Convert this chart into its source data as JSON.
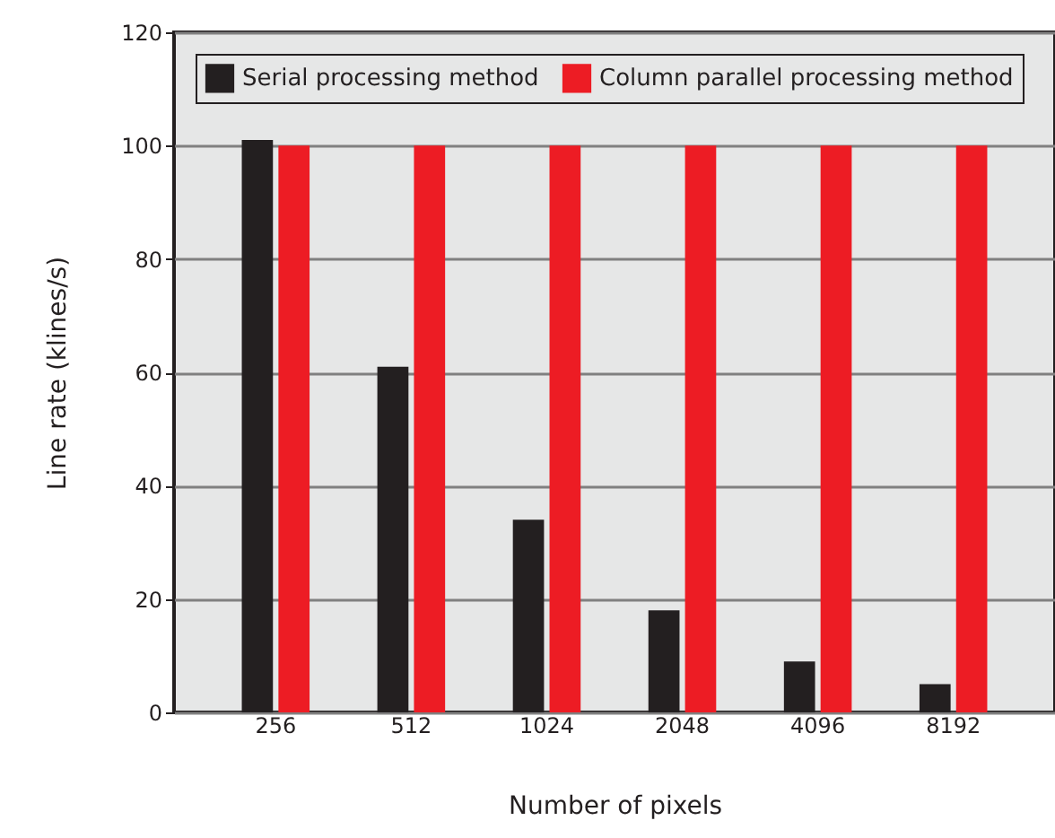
{
  "chart_data": {
    "type": "bar",
    "xlabel": "Number of pixels",
    "ylabel": "Line rate (klines/s)",
    "categories": [
      "256",
      "512",
      "1024",
      "2048",
      "4096",
      "8192"
    ],
    "series": [
      {
        "name": "Serial processing method",
        "color": "#231f20",
        "values": [
          101,
          61,
          34,
          18,
          9,
          5
        ]
      },
      {
        "name": "Column parallel processing method",
        "color": "#ed1c24",
        "values": [
          100,
          100,
          100,
          100,
          100,
          100
        ]
      }
    ],
    "ylim": [
      0,
      120
    ],
    "yticks": [
      0,
      20,
      40,
      60,
      80,
      100,
      120
    ],
    "grid": "y",
    "legend": "top"
  }
}
